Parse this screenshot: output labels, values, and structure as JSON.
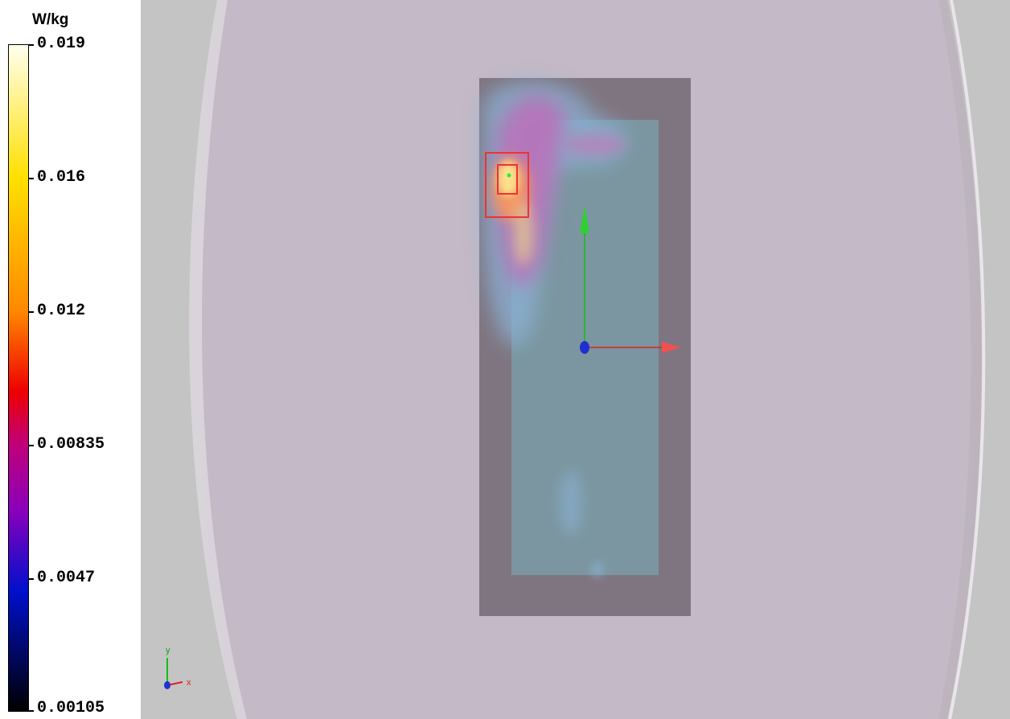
{
  "legend": {
    "unit": "W/kg",
    "ticks": [
      {
        "label": "0.019",
        "value": 0.019
      },
      {
        "label": "0.016",
        "value": 0.016
      },
      {
        "label": "0.012",
        "value": 0.012
      },
      {
        "label": "0.00835",
        "value": 0.00835
      },
      {
        "label": "0.0047",
        "value": 0.0047
      },
      {
        "label": "0.00105",
        "value": 0.00105
      }
    ],
    "colors": {
      "top": "#ffffee",
      "yellow": "#ffe000",
      "orange": "#ff8800",
      "red": "#ee0000",
      "magenta": "#c0007a",
      "purple": "#8800bb",
      "blue": "#0010cc",
      "bottom": "#000000"
    }
  },
  "viewport": {
    "background": "#c4c4c4",
    "phantom_color": "#c4b9c6",
    "device_color": "#7f7580",
    "scan_area_color": "#7b96a0",
    "axis_x_color": "#e02020",
    "axis_y_color": "#10c010",
    "axis_z_color": "#2030d0",
    "orientation_labels": {
      "x": "x",
      "y": "y"
    }
  }
}
